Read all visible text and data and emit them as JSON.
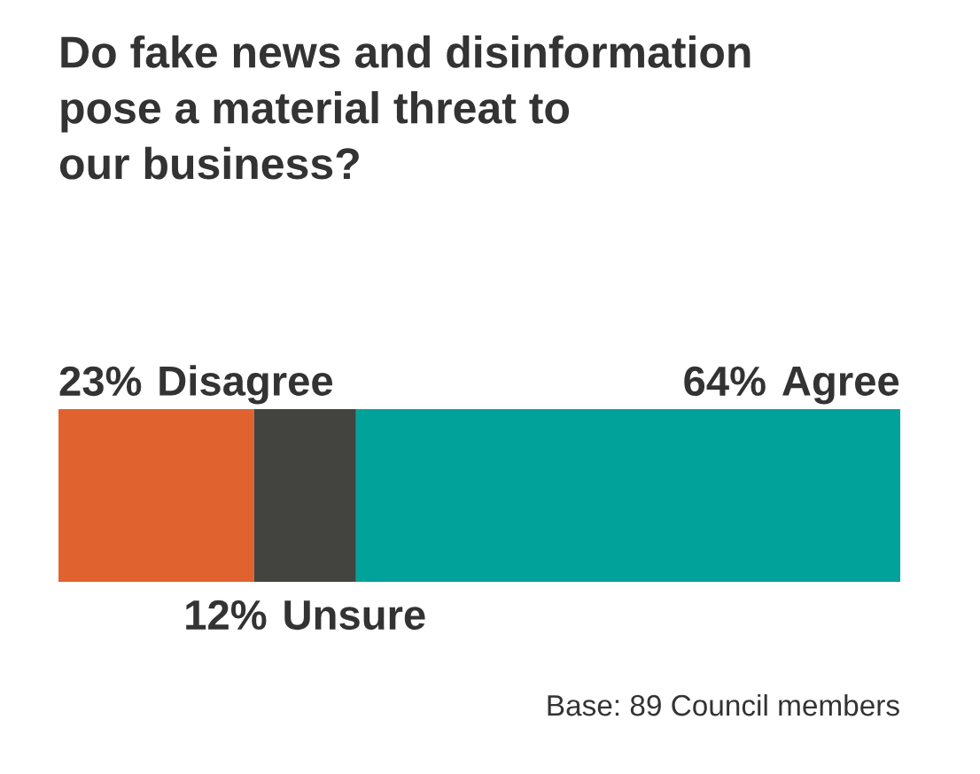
{
  "chart_data": {
    "type": "bar",
    "orientation": "horizontal",
    "stacked": true,
    "title": "Do fake news and disinformation\npose a material threat to\nour business?",
    "categories": [
      null
    ],
    "series": [
      {
        "name": "Disagree",
        "color": "#e0622f",
        "values": [
          23
        ],
        "value_labels": [
          "23%"
        ]
      },
      {
        "name": "Unsure",
        "color": "#43433f",
        "values": [
          12
        ],
        "value_labels": [
          "12%"
        ]
      },
      {
        "name": "Agree",
        "color": "#00a29a",
        "values": [
          64
        ],
        "value_labels": [
          "64%"
        ]
      }
    ],
    "legend": false,
    "annotations": [
      "Base: 89 Council members"
    ]
  }
}
